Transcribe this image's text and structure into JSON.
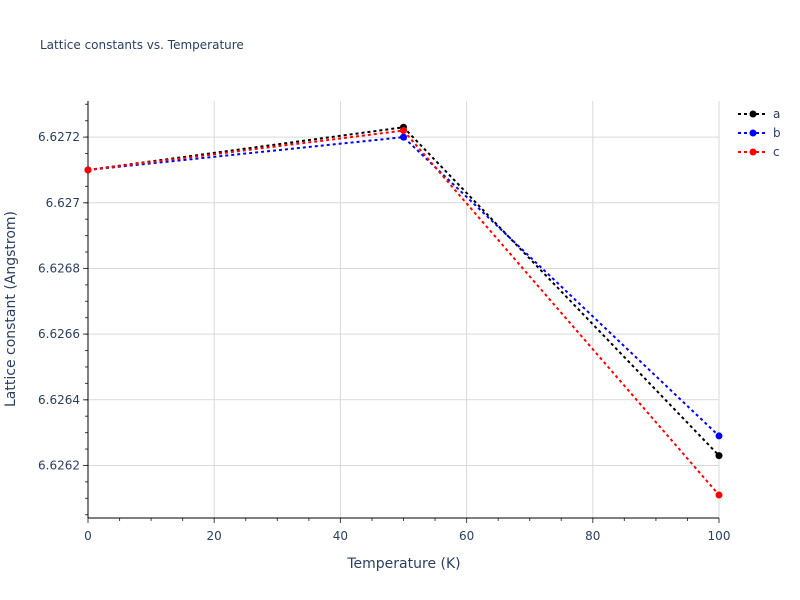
{
  "chart_data": {
    "type": "line",
    "title": "Lattice constants vs. Temperature",
    "xlabel": "Temperature (K)",
    "ylabel": "Lattice constant (Angstrom)",
    "x": [
      0,
      50,
      100
    ],
    "series": [
      {
        "name": "a",
        "color": "#000000",
        "values": [
          6.6271,
          6.62723,
          6.62623
        ]
      },
      {
        "name": "b",
        "color": "#0000ff",
        "values": [
          6.6271,
          6.6272,
          6.62629
        ]
      },
      {
        "name": "c",
        "color": "#ff0000",
        "values": [
          6.6271,
          6.62722,
          6.62611
        ]
      }
    ],
    "xlim": [
      0,
      100
    ],
    "ylim": [
      6.62604,
      6.62731
    ],
    "x_ticks": [
      0,
      20,
      40,
      60,
      80,
      100
    ],
    "y_ticks": [
      6.6262,
      6.6264,
      6.6266,
      6.6268,
      6.627,
      6.6272
    ],
    "y_tick_labels": [
      "6.6262",
      "6.6264",
      "6.6266",
      "6.6268",
      "6.627",
      "6.6272"
    ],
    "grid": true,
    "line_style": "dotted",
    "markers": true,
    "legend_position": "top-right"
  }
}
